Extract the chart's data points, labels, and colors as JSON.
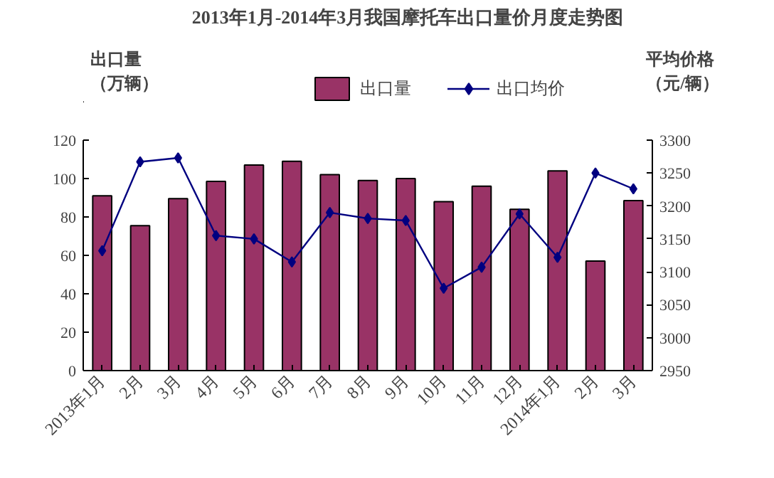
{
  "chart_data": {
    "type": "bar",
    "title": "2013年1月-2014年3月我国摩托车出口量价月度走势图",
    "ylabel": "出口量（万辆）",
    "y2label": "平均价格（元/辆）",
    "categories": [
      "2013年1月",
      "2月",
      "3月",
      "4月",
      "5月",
      "6月",
      "7月",
      "8月",
      "9月",
      "10月",
      "11月",
      "12月",
      "2014年1月",
      "2月",
      "3月"
    ],
    "series": [
      {
        "name": "出口量",
        "color": "#993366",
        "values": [
          91,
          75.5,
          89.5,
          98.5,
          107,
          109,
          102,
          99,
          100,
          88,
          96,
          84,
          104,
          57,
          88.5
        ]
      },
      {
        "name": "出口均价",
        "type": "line",
        "axis": "y2",
        "color": "#000080",
        "marker": "diamond",
        "values": [
          3132,
          3267,
          3273,
          3155,
          3150,
          3115,
          3190,
          3181,
          3178,
          3075,
          3107,
          3188,
          3122,
          3250,
          3226
        ]
      }
    ],
    "ylim": [
      0,
      120
    ],
    "yticks": [
      0,
      20,
      40,
      60,
      80,
      100,
      120
    ],
    "y2lim": [
      2950,
      3300
    ],
    "y2ticks": [
      2950,
      3000,
      3050,
      3100,
      3150,
      3200,
      3250,
      3300
    ],
    "legend": "top",
    "grid": false
  }
}
